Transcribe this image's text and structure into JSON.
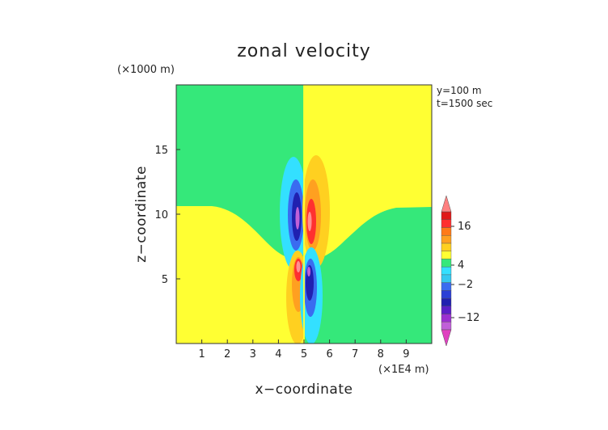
{
  "chart_data": {
    "type": "heatmap",
    "title": "zonal velocity",
    "xlabel": "x−coordinate",
    "ylabel": "z−coordinate",
    "x_unit_label": "(×1E4 m)",
    "y_unit_label": "(×1000 m)",
    "annotation_lines": [
      "y=100 m",
      "t=1500 sec"
    ],
    "x_ticks": [
      "1",
      "2",
      "3",
      "4",
      "5",
      "6",
      "7",
      "8",
      "9"
    ],
    "y_ticks": [
      "5",
      "10",
      "15"
    ],
    "xlim": [
      0,
      10
    ],
    "ylim": [
      0,
      20
    ],
    "colorbar_ticks": [
      "16",
      "4",
      "−2",
      "−12"
    ],
    "colorbar_levels": [
      {
        "color": "#e040c0"
      },
      {
        "color": "#c060d8"
      },
      {
        "color": "#9b30d0"
      },
      {
        "color": "#5a1fc8"
      },
      {
        "color": "#2020b0"
      },
      {
        "color": "#2b3fd6"
      },
      {
        "color": "#3a6cf0"
      },
      {
        "color": "#34c8f0"
      },
      {
        "color": "#33e0ff"
      },
      {
        "color": "#35e87a"
      },
      {
        "color": "#ffff33"
      },
      {
        "color": "#ffd020"
      },
      {
        "color": "#ffa020"
      },
      {
        "color": "#ff7a18"
      },
      {
        "color": "#ff3030"
      },
      {
        "color": "#e01818"
      },
      {
        "color": "#ff8080"
      }
    ],
    "colors": {
      "negative_background": "#35e87a",
      "positive_background": "#ffff33",
      "light_blue": "#33e0ff",
      "blue": "#3a6cf0",
      "dark_blue": "#2020b0",
      "orange_light": "#ffd020",
      "orange": "#ffa020",
      "red": "#ff3030",
      "pink": "#ff9090"
    }
  }
}
